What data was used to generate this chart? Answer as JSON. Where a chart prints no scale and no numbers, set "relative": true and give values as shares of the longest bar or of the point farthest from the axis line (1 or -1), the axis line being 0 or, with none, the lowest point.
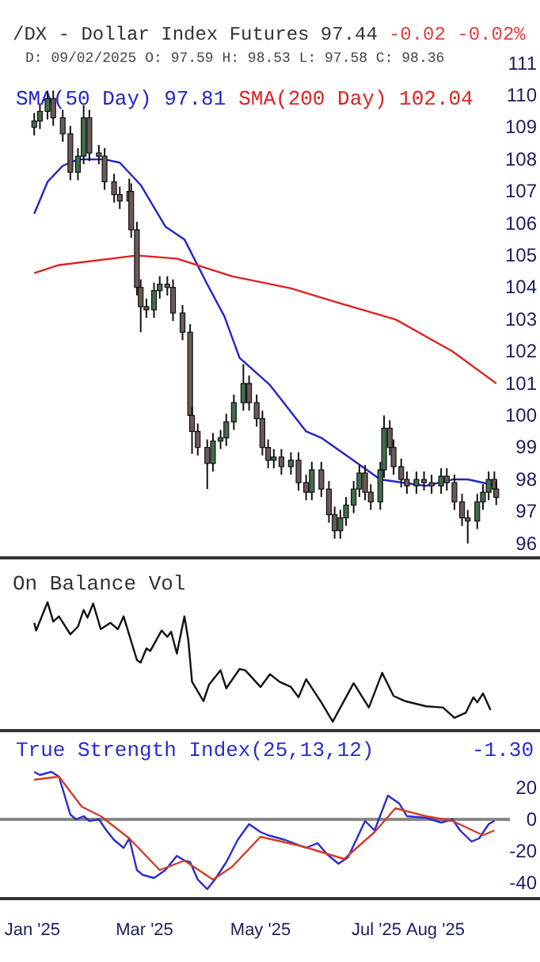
{
  "chart_data": [
    {
      "type": "candlestick",
      "title": "/DX - Dollar Index Futures 97.44",
      "annotations": [
        "-0.02 -0.02%"
      ],
      "subtitle": "D: 09/02/2025 O: 97.59 H: 98.53 L: 97.58 C: 98.36",
      "xlim": [
        "2024-12-15",
        "2025-09-25"
      ],
      "ylim": [
        95.55,
        111
      ],
      "yticks": [
        96,
        97,
        98,
        99,
        100,
        101,
        102,
        103,
        104,
        105,
        106,
        107,
        108,
        109,
        110,
        111
      ],
      "tick_labels": "y",
      "legend": "top left",
      "x": [
        "2025-01-02",
        "2025-01-05",
        "2025-01-09",
        "2025-01-12",
        "2025-01-17",
        "2025-01-21",
        "2025-01-25",
        "2025-01-28",
        "2025-01-31",
        "2025-02-05",
        "2025-02-08",
        "2025-02-13",
        "2025-02-16",
        "2025-02-21",
        "2025-02-22",
        "2025-02-25",
        "2025-02-27",
        "2025-03-02",
        "2025-03-06",
        "2025-03-09",
        "2025-03-13",
        "2025-03-16",
        "2025-03-21",
        "2025-03-25",
        "2025-03-26",
        "2025-03-29",
        "2025-04-03",
        "2025-04-06",
        "2025-04-10",
        "2025-04-13",
        "2025-04-17",
        "2025-04-22",
        "2025-04-25",
        "2025-04-29",
        "2025-05-02",
        "2025-05-05",
        "2025-05-08",
        "2025-05-12",
        "2025-05-17",
        "2025-05-21",
        "2025-05-25",
        "2025-05-28",
        "2025-06-02",
        "2025-06-06",
        "2025-06-09",
        "2025-06-12",
        "2025-06-15",
        "2025-06-19",
        "2025-06-22",
        "2025-06-25",
        "2025-06-28",
        "2025-07-03",
        "2025-07-05",
        "2025-07-08",
        "2025-07-10",
        "2025-07-14",
        "2025-07-17",
        "2025-07-22",
        "2025-07-26",
        "2025-07-30",
        "2025-08-04",
        "2025-08-07",
        "2025-08-11",
        "2025-08-15",
        "2025-08-18",
        "2025-08-23",
        "2025-08-26",
        "2025-08-29",
        "2025-09-01",
        "2025-09-02"
      ],
      "ohlc": [
        [
          109.0,
          109.45,
          108.75,
          109.2
        ],
        [
          109.2,
          109.75,
          108.95,
          109.5
        ],
        [
          109.5,
          110.15,
          109.25,
          109.9
        ],
        [
          109.9,
          110.15,
          109.05,
          109.3
        ],
        [
          109.3,
          109.55,
          108.55,
          108.8
        ],
        [
          108.8,
          109.05,
          107.35,
          107.6
        ],
        [
          107.6,
          108.35,
          107.35,
          108.1
        ],
        [
          108.1,
          109.7,
          107.85,
          109.3
        ],
        [
          109.3,
          109.55,
          107.95,
          108.2
        ],
        [
          108.2,
          108.45,
          107.85,
          108.1
        ],
        [
          108.1,
          108.35,
          107.05,
          107.3
        ],
        [
          107.3,
          107.55,
          106.65,
          106.9
        ],
        [
          106.9,
          107.15,
          106.45,
          106.7
        ],
        [
          106.7,
          107.4,
          106.45,
          107.0
        ],
        [
          107.0,
          107.25,
          105.55,
          105.8
        ],
        [
          105.8,
          106.05,
          103.75,
          104.0
        ],
        [
          104.0,
          104.25,
          102.6,
          103.4
        ],
        [
          103.4,
          103.65,
          103.05,
          103.3
        ],
        [
          103.3,
          104.15,
          103.05,
          103.9
        ],
        [
          103.9,
          104.35,
          103.65,
          104.1
        ],
        [
          104.1,
          104.35,
          103.75,
          104.0
        ],
        [
          104.0,
          104.25,
          102.95,
          103.2
        ],
        [
          103.2,
          103.45,
          102.35,
          102.6
        ],
        [
          102.6,
          102.85,
          99.75,
          100.0
        ],
        [
          100.0,
          100.25,
          98.8,
          99.5
        ],
        [
          99.5,
          99.75,
          98.75,
          99.0
        ],
        [
          99.0,
          99.25,
          97.7,
          98.5
        ],
        [
          98.5,
          99.45,
          98.25,
          99.2
        ],
        [
          99.2,
          99.55,
          98.95,
          99.3
        ],
        [
          99.3,
          100.05,
          99.05,
          99.8
        ],
        [
          99.8,
          100.65,
          99.55,
          100.4
        ],
        [
          100.4,
          101.6,
          100.15,
          101.0
        ],
        [
          101.0,
          101.25,
          100.15,
          100.4
        ],
        [
          100.4,
          100.65,
          99.65,
          99.9
        ],
        [
          99.9,
          100.15,
          98.75,
          99.0
        ],
        [
          99.0,
          99.25,
          98.35,
          98.6
        ],
        [
          98.6,
          98.95,
          98.35,
          98.7
        ],
        [
          98.7,
          98.95,
          98.15,
          98.4
        ],
        [
          98.4,
          98.85,
          98.15,
          98.6
        ],
        [
          98.6,
          98.85,
          97.65,
          97.9
        ],
        [
          97.9,
          98.15,
          97.35,
          97.6
        ],
        [
          97.6,
          98.55,
          97.35,
          98.3
        ],
        [
          98.3,
          98.55,
          97.45,
          97.7
        ],
        [
          97.7,
          97.95,
          96.65,
          96.9
        ],
        [
          96.9,
          97.15,
          96.15,
          96.4
        ],
        [
          96.4,
          97.05,
          96.15,
          96.8
        ],
        [
          96.8,
          97.45,
          96.55,
          97.2
        ],
        [
          97.2,
          97.95,
          96.95,
          97.7
        ],
        [
          97.7,
          98.45,
          97.45,
          98.2
        ],
        [
          98.2,
          98.45,
          97.35,
          97.6
        ],
        [
          97.6,
          97.85,
          97.05,
          97.3
        ],
        [
          97.3,
          98.55,
          97.05,
          98.3
        ],
        [
          98.3,
          100.0,
          98.05,
          99.6
        ],
        [
          99.6,
          99.85,
          98.75,
          99.0
        ],
        [
          99.0,
          99.25,
          98.15,
          98.4
        ],
        [
          98.4,
          98.65,
          97.75,
          98.0
        ],
        [
          98.0,
          98.25,
          97.55,
          97.8
        ],
        [
          97.8,
          98.25,
          97.55,
          98.0
        ],
        [
          98.0,
          98.25,
          97.65,
          97.9
        ],
        [
          97.9,
          98.15,
          97.55,
          97.8
        ],
        [
          97.8,
          98.35,
          97.55,
          98.1
        ],
        [
          98.1,
          98.35,
          97.65,
          97.9
        ],
        [
          97.9,
          98.15,
          97.05,
          97.3
        ],
        [
          97.3,
          97.55,
          96.55,
          96.8
        ],
        [
          96.8,
          97.05,
          96.0,
          96.7
        ],
        [
          96.7,
          97.55,
          96.45,
          97.3
        ],
        [
          97.3,
          97.85,
          97.05,
          97.6
        ],
        [
          97.6,
          98.25,
          97.35,
          98.0
        ],
        [
          98.0,
          98.25,
          97.45,
          97.7
        ],
        [
          97.7,
          97.95,
          97.2,
          97.44
        ]
      ],
      "series": [
        {
          "type": "line",
          "name": "SMA(50 Day) 97.81",
          "color": "#2323c8",
          "x": [
            "2025-01-02",
            "2025-01-09",
            "2025-01-17",
            "2025-01-25",
            "2025-02-08",
            "2025-02-16",
            "2025-02-27",
            "2025-03-12",
            "2025-03-22",
            "2025-04-03",
            "2025-04-12",
            "2025-04-20",
            "2025-05-06",
            "2025-05-25",
            "2025-06-02",
            "2025-06-14",
            "2025-07-03",
            "2025-07-27",
            "2025-08-10",
            "2025-08-18",
            "2025-09-02"
          ],
          "values": [
            106.3,
            107.3,
            107.8,
            108.0,
            108.0,
            107.9,
            107.2,
            105.9,
            105.5,
            104.1,
            103.1,
            101.8,
            100.95,
            99.5,
            99.3,
            98.8,
            98.0,
            97.8,
            98.0,
            98.0,
            97.81
          ]
        },
        {
          "type": "line",
          "name": "SMA(200 Day) 102.04",
          "color": "#e02020",
          "x": [
            "2025-01-02",
            "2025-01-15",
            "2025-02-25",
            "2025-03-18",
            "2025-04-16",
            "2025-05-17",
            "2025-06-12",
            "2025-07-11",
            "2025-08-10",
            "2025-09-02"
          ],
          "values": [
            104.45,
            104.7,
            105.0,
            104.9,
            104.35,
            103.97,
            103.5,
            103.0,
            102.0,
            101.0
          ]
        }
      ]
    },
    {
      "type": "line",
      "title": "On Balance Vol",
      "relative": true,
      "tick_labels": false,
      "xlim": [
        "2024-12-15",
        "2025-09-25"
      ],
      "color": "#111111",
      "x": [
        "2025-01-02",
        "2025-01-03",
        "2025-01-09",
        "2025-01-12",
        "2025-01-15",
        "2025-01-21",
        "2025-01-25",
        "2025-01-28",
        "2025-01-30",
        "2025-02-02",
        "2025-02-06",
        "2025-02-11",
        "2025-02-15",
        "2025-02-18",
        "2025-02-25",
        "2025-02-27",
        "2025-03-02",
        "2025-03-04",
        "2025-03-10",
        "2025-03-13",
        "2025-03-15",
        "2025-03-18",
        "2025-03-22",
        "2025-03-24",
        "2025-03-26",
        "2025-04-01",
        "2025-04-04",
        "2025-04-10",
        "2025-04-13",
        "2025-04-20",
        "2025-04-23",
        "2025-05-01",
        "2025-05-06",
        "2025-05-11",
        "2025-05-17",
        "2025-05-21",
        "2025-05-25",
        "2025-06-02",
        "2025-06-08",
        "2025-06-19",
        "2025-06-27",
        "2025-07-04",
        "2025-07-10",
        "2025-07-16",
        "2025-07-27",
        "2025-08-05",
        "2025-08-11",
        "2025-08-17",
        "2025-08-21",
        "2025-08-23",
        "2025-08-26",
        "2025-08-30"
      ],
      "values": [
        0.84,
        0.78,
        1.0,
        0.85,
        0.89,
        0.75,
        0.81,
        0.94,
        0.88,
        0.99,
        0.79,
        0.84,
        0.79,
        0.89,
        0.55,
        0.53,
        0.64,
        0.62,
        0.78,
        0.73,
        0.77,
        0.6,
        0.89,
        0.71,
        0.38,
        0.23,
        0.36,
        0.47,
        0.33,
        0.48,
        0.47,
        0.34,
        0.44,
        0.38,
        0.34,
        0.26,
        0.4,
        0.22,
        0.07,
        0.37,
        0.18,
        0.45,
        0.27,
        0.23,
        0.19,
        0.18,
        0.1,
        0.14,
        0.26,
        0.22,
        0.29,
        0.16
      ]
    },
    {
      "type": "line",
      "xlim": [
        "2024-12-15",
        "2025-09-25"
      ],
      "ylim": [
        -50,
        56
      ],
      "yticks": [
        -40,
        -20,
        0,
        20
      ],
      "legend": "top left",
      "annotations": [
        "-1.30"
      ],
      "xticks": [
        {
          "value": "2025-01-01",
          "label": "Jan '25"
        },
        {
          "value": "2025-03-01",
          "label": "Mar '25"
        },
        {
          "value": "2025-05-01",
          "label": "May '25"
        },
        {
          "value": "2025-07-01",
          "label": "Jul '25"
        },
        {
          "value": "2025-08-01",
          "label": "Aug '25"
        }
      ],
      "ref_lines": [
        {
          "axis": "y",
          "value": 0,
          "color": "#888888"
        }
      ],
      "series": [
        {
          "name": "True Strength Index(25,13,12)",
          "color": "#2b2bd0",
          "x": [
            "2025-01-02",
            "2025-01-05",
            "2025-01-11",
            "2025-01-15",
            "2025-01-21",
            "2025-01-24",
            "2025-01-28",
            "2025-01-31",
            "2025-02-05",
            "2025-02-09",
            "2025-02-13",
            "2025-02-18",
            "2025-02-21",
            "2025-02-25",
            "2025-02-28",
            "2025-03-06",
            "2025-03-12",
            "2025-03-18",
            "2025-03-22",
            "2025-03-25",
            "2025-03-29",
            "2025-04-03",
            "2025-04-07",
            "2025-04-13",
            "2025-04-19",
            "2025-04-25",
            "2025-05-01",
            "2025-05-05",
            "2025-05-14",
            "2025-05-25",
            "2025-05-31",
            "2025-06-05",
            "2025-06-11",
            "2025-06-16",
            "2025-06-25",
            "2025-06-30",
            "2025-07-07",
            "2025-07-13",
            "2025-07-17",
            "2025-07-27",
            "2025-08-04",
            "2025-08-10",
            "2025-08-14",
            "2025-08-20",
            "2025-08-24",
            "2025-08-29",
            "2025-09-01"
          ],
          "values": [
            30,
            28,
            30,
            27,
            3,
            0,
            2,
            -1,
            0,
            -7,
            -13,
            -18,
            -12,
            -32,
            -35,
            -37,
            -32,
            -23,
            -26,
            -27,
            -38,
            -44,
            -38,
            -27,
            -13,
            -3,
            -8,
            -10,
            -13,
            -18,
            -15,
            -22,
            -28,
            -24,
            -1,
            -7,
            15,
            10,
            2,
            1,
            -2,
            0,
            -7,
            -14,
            -12,
            -3,
            -1
          ]
        },
        {
          "color": "#d03c28",
          "x": [
            "2025-01-02",
            "2025-01-15",
            "2025-01-27",
            "2025-02-06",
            "2025-02-21",
            "2025-03-09",
            "2025-03-22",
            "2025-04-06",
            "2025-04-16",
            "2025-05-01",
            "2025-05-23",
            "2025-06-14",
            "2025-06-30",
            "2025-07-11",
            "2025-07-27",
            "2025-08-10",
            "2025-08-26",
            "2025-09-01"
          ],
          "values": [
            25,
            27,
            8,
            2,
            -12,
            -32,
            -26,
            -38,
            -30,
            -11,
            -17,
            -25,
            -8,
            7,
            2,
            -1,
            -10,
            -7
          ]
        }
      ]
    }
  ]
}
